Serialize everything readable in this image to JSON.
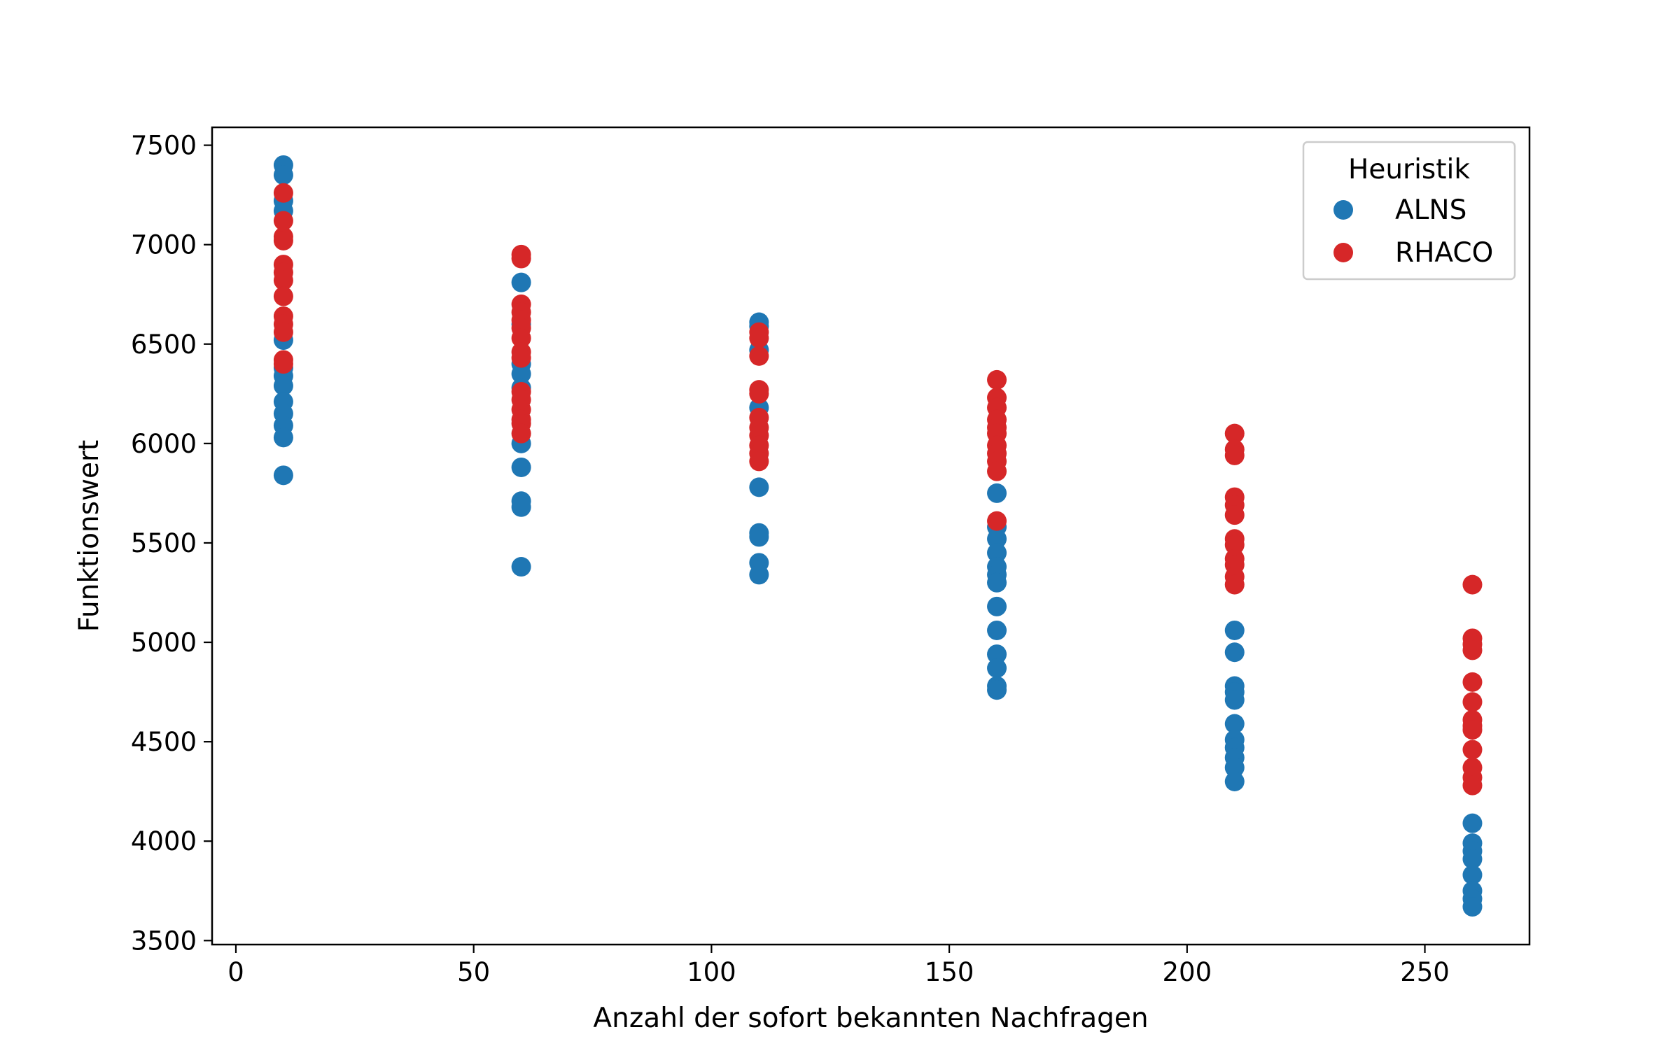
{
  "chart_data": {
    "type": "scatter",
    "title": "",
    "xlabel": "Anzahl der sofort bekannten Nachfragen",
    "ylabel": "Funktionswert",
    "xlim": [
      -5,
      272
    ],
    "ylim": [
      3480,
      7590
    ],
    "xticks": [
      0,
      50,
      100,
      150,
      200,
      250
    ],
    "yticks": [
      3500,
      4000,
      4500,
      5000,
      5500,
      6000,
      6500,
      7000,
      7500
    ],
    "grid": false,
    "legend": {
      "title": "Heuristik",
      "placement": "top-right"
    },
    "series": [
      {
        "name": "ALNS",
        "color": "#1f77b4",
        "points": [
          {
            "x": 10,
            "y": 7400
          },
          {
            "x": 10,
            "y": 7350
          },
          {
            "x": 10,
            "y": 7220
          },
          {
            "x": 10,
            "y": 7170
          },
          {
            "x": 10,
            "y": 6520
          },
          {
            "x": 10,
            "y": 6380
          },
          {
            "x": 10,
            "y": 6340
          },
          {
            "x": 10,
            "y": 6290
          },
          {
            "x": 10,
            "y": 6210
          },
          {
            "x": 10,
            "y": 6150
          },
          {
            "x": 10,
            "y": 6090
          },
          {
            "x": 10,
            "y": 6030
          },
          {
            "x": 10,
            "y": 5840
          },
          {
            "x": 60,
            "y": 6810
          },
          {
            "x": 60,
            "y": 6600
          },
          {
            "x": 60,
            "y": 6400
          },
          {
            "x": 60,
            "y": 6350
          },
          {
            "x": 60,
            "y": 6280
          },
          {
            "x": 60,
            "y": 6000
          },
          {
            "x": 60,
            "y": 5880
          },
          {
            "x": 60,
            "y": 5710
          },
          {
            "x": 60,
            "y": 5680
          },
          {
            "x": 60,
            "y": 5380
          },
          {
            "x": 110,
            "y": 6610
          },
          {
            "x": 110,
            "y": 6590
          },
          {
            "x": 110,
            "y": 6470
          },
          {
            "x": 110,
            "y": 6180
          },
          {
            "x": 110,
            "y": 5780
          },
          {
            "x": 110,
            "y": 5550
          },
          {
            "x": 110,
            "y": 5530
          },
          {
            "x": 110,
            "y": 5400
          },
          {
            "x": 110,
            "y": 5340
          },
          {
            "x": 160,
            "y": 5750
          },
          {
            "x": 160,
            "y": 5580
          },
          {
            "x": 160,
            "y": 5520
          },
          {
            "x": 160,
            "y": 5450
          },
          {
            "x": 160,
            "y": 5380
          },
          {
            "x": 160,
            "y": 5340
          },
          {
            "x": 160,
            "y": 5300
          },
          {
            "x": 160,
            "y": 5180
          },
          {
            "x": 160,
            "y": 5060
          },
          {
            "x": 160,
            "y": 4940
          },
          {
            "x": 160,
            "y": 4870
          },
          {
            "x": 160,
            "y": 4780
          },
          {
            "x": 160,
            "y": 4760
          },
          {
            "x": 210,
            "y": 5060
          },
          {
            "x": 210,
            "y": 4950
          },
          {
            "x": 210,
            "y": 4780
          },
          {
            "x": 210,
            "y": 4750
          },
          {
            "x": 210,
            "y": 4710
          },
          {
            "x": 210,
            "y": 4590
          },
          {
            "x": 210,
            "y": 4510
          },
          {
            "x": 210,
            "y": 4470
          },
          {
            "x": 210,
            "y": 4420
          },
          {
            "x": 210,
            "y": 4370
          },
          {
            "x": 210,
            "y": 4300
          },
          {
            "x": 260,
            "y": 4090
          },
          {
            "x": 260,
            "y": 3990
          },
          {
            "x": 260,
            "y": 3950
          },
          {
            "x": 260,
            "y": 3910
          },
          {
            "x": 260,
            "y": 3830
          },
          {
            "x": 260,
            "y": 3750
          },
          {
            "x": 260,
            "y": 3710
          },
          {
            "x": 260,
            "y": 3670
          }
        ]
      },
      {
        "name": "RHACO",
        "color": "#d62728",
        "points": [
          {
            "x": 10,
            "y": 7260
          },
          {
            "x": 10,
            "y": 7120
          },
          {
            "x": 10,
            "y": 7040
          },
          {
            "x": 10,
            "y": 7020
          },
          {
            "x": 10,
            "y": 6900
          },
          {
            "x": 10,
            "y": 6860
          },
          {
            "x": 10,
            "y": 6820
          },
          {
            "x": 10,
            "y": 6740
          },
          {
            "x": 10,
            "y": 6640
          },
          {
            "x": 10,
            "y": 6600
          },
          {
            "x": 10,
            "y": 6560
          },
          {
            "x": 10,
            "y": 6420
          },
          {
            "x": 10,
            "y": 6400
          },
          {
            "x": 60,
            "y": 6950
          },
          {
            "x": 60,
            "y": 6930
          },
          {
            "x": 60,
            "y": 6700
          },
          {
            "x": 60,
            "y": 6660
          },
          {
            "x": 60,
            "y": 6620
          },
          {
            "x": 60,
            "y": 6580
          },
          {
            "x": 60,
            "y": 6530
          },
          {
            "x": 60,
            "y": 6460
          },
          {
            "x": 60,
            "y": 6430
          },
          {
            "x": 60,
            "y": 6260
          },
          {
            "x": 60,
            "y": 6220
          },
          {
            "x": 60,
            "y": 6170
          },
          {
            "x": 60,
            "y": 6120
          },
          {
            "x": 60,
            "y": 6100
          },
          {
            "x": 60,
            "y": 6050
          },
          {
            "x": 110,
            "y": 6560
          },
          {
            "x": 110,
            "y": 6530
          },
          {
            "x": 110,
            "y": 6440
          },
          {
            "x": 110,
            "y": 6270
          },
          {
            "x": 110,
            "y": 6250
          },
          {
            "x": 110,
            "y": 6130
          },
          {
            "x": 110,
            "y": 6080
          },
          {
            "x": 110,
            "y": 6040
          },
          {
            "x": 110,
            "y": 5990
          },
          {
            "x": 110,
            "y": 5950
          },
          {
            "x": 110,
            "y": 5910
          },
          {
            "x": 160,
            "y": 6320
          },
          {
            "x": 160,
            "y": 6230
          },
          {
            "x": 160,
            "y": 6180
          },
          {
            "x": 160,
            "y": 6120
          },
          {
            "x": 160,
            "y": 6080
          },
          {
            "x": 160,
            "y": 6050
          },
          {
            "x": 160,
            "y": 5990
          },
          {
            "x": 160,
            "y": 5950
          },
          {
            "x": 160,
            "y": 5910
          },
          {
            "x": 160,
            "y": 5860
          },
          {
            "x": 160,
            "y": 5610
          },
          {
            "x": 210,
            "y": 6050
          },
          {
            "x": 210,
            "y": 5970
          },
          {
            "x": 210,
            "y": 5940
          },
          {
            "x": 210,
            "y": 5730
          },
          {
            "x": 210,
            "y": 5690
          },
          {
            "x": 210,
            "y": 5640
          },
          {
            "x": 210,
            "y": 5520
          },
          {
            "x": 210,
            "y": 5490
          },
          {
            "x": 210,
            "y": 5420
          },
          {
            "x": 210,
            "y": 5390
          },
          {
            "x": 210,
            "y": 5330
          },
          {
            "x": 210,
            "y": 5290
          },
          {
            "x": 260,
            "y": 5290
          },
          {
            "x": 260,
            "y": 5020
          },
          {
            "x": 260,
            "y": 4990
          },
          {
            "x": 260,
            "y": 4960
          },
          {
            "x": 260,
            "y": 4800
          },
          {
            "x": 260,
            "y": 4700
          },
          {
            "x": 260,
            "y": 4610
          },
          {
            "x": 260,
            "y": 4580
          },
          {
            "x": 260,
            "y": 4560
          },
          {
            "x": 260,
            "y": 4460
          },
          {
            "x": 260,
            "y": 4370
          },
          {
            "x": 260,
            "y": 4320
          },
          {
            "x": 260,
            "y": 4280
          }
        ]
      }
    ]
  }
}
